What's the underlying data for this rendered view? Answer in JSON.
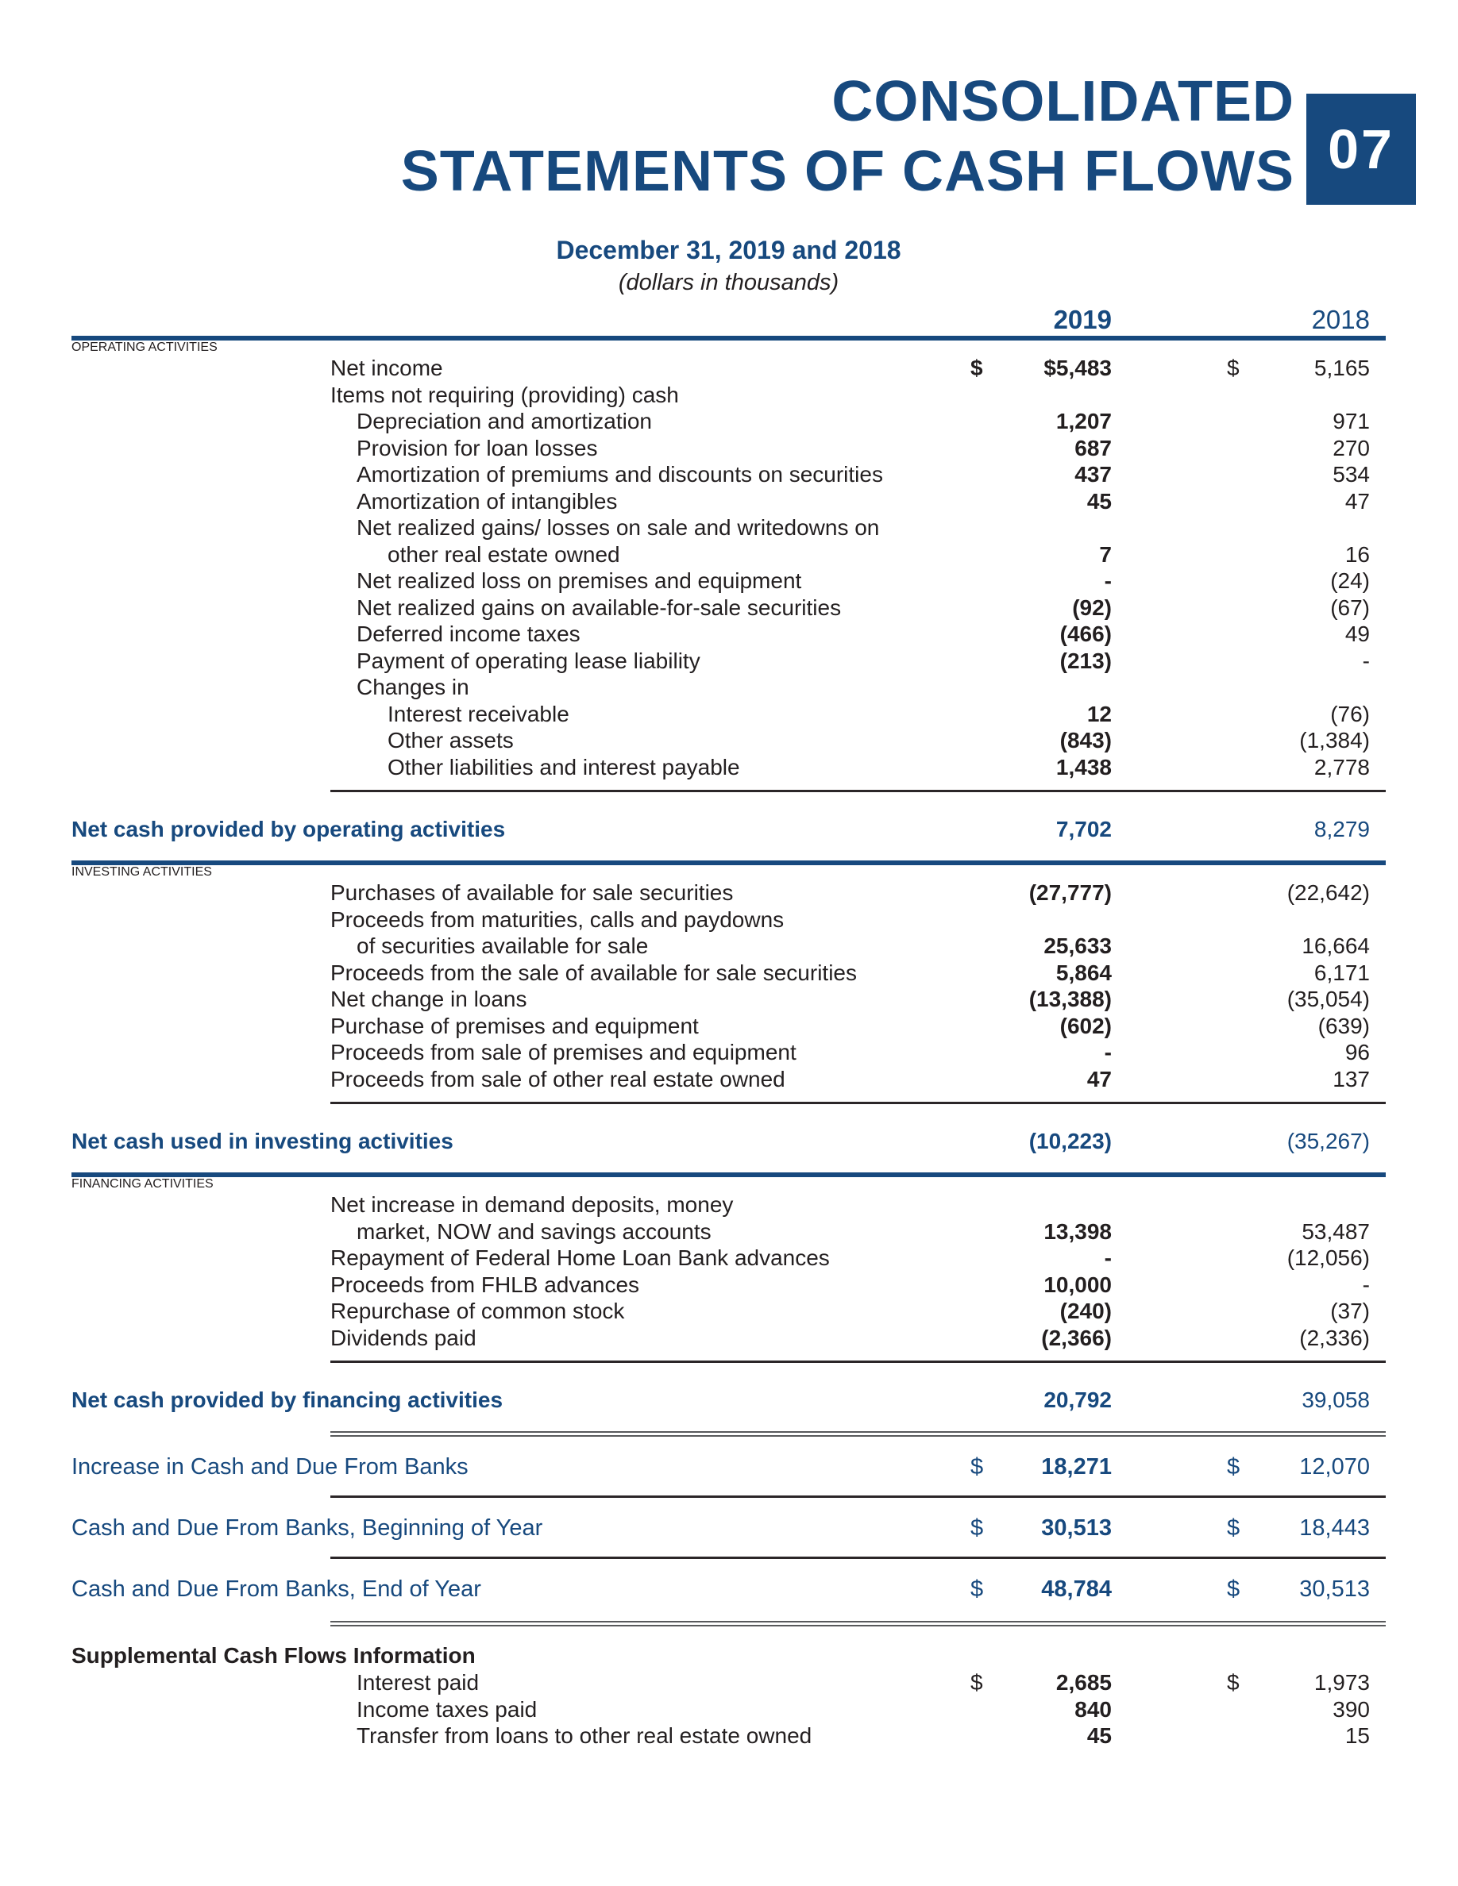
{
  "header": {
    "title_line1": "CONSOLIDATED",
    "title_line2": "STATEMENTS OF CASH FLOWS",
    "chapter_badge": "07",
    "date_line": "December 31, 2019 and 2018",
    "units_line": "(dollars in thousands)",
    "col_2019": "2019",
    "col_2018": "2018"
  },
  "colors": {
    "accent_blue": "#17497e",
    "text_black": "#231f20",
    "rule_gray": "#58595b"
  },
  "rows": [
    {
      "type": "section",
      "label": "OPERATING ACTIVITIES"
    },
    {
      "type": "item",
      "indent": 1,
      "label": "Net income",
      "d1": "$",
      "v1": "$5,483",
      "d2": "$",
      "v2": "5,165",
      "bold_d1": true
    },
    {
      "type": "item",
      "indent": 1,
      "label": "Items not requiring (providing) cash"
    },
    {
      "type": "item",
      "indent": 2,
      "label": "Depreciation and amortization",
      "v1": "1,207",
      "v2": "971"
    },
    {
      "type": "item",
      "indent": 2,
      "label": "Provision for loan losses",
      "v1": "687",
      "v2": "270"
    },
    {
      "type": "item",
      "indent": 2,
      "label": "Amortization of premiums and discounts on securities",
      "v1": "437",
      "v2": "534"
    },
    {
      "type": "item",
      "indent": 2,
      "label": "Amortization of intangibles",
      "v1": "45",
      "v2": "47"
    },
    {
      "type": "item",
      "indent": 2,
      "label": "Net realized gains/ losses on sale and writedowns on"
    },
    {
      "type": "item",
      "indent": 3,
      "label": "other real estate owned",
      "v1": "7",
      "v2": "16"
    },
    {
      "type": "item",
      "indent": 2,
      "label": "Net realized loss on premises and equipment",
      "v1": "-",
      "v2": "(24)"
    },
    {
      "type": "item",
      "indent": 2,
      "label": "Net realized gains on available-for-sale securities",
      "v1": "(92)",
      "v2": "(67)"
    },
    {
      "type": "item",
      "indent": 2,
      "label": "Deferred income taxes",
      "v1": "(466)",
      "v2": "49"
    },
    {
      "type": "item",
      "indent": 2,
      "label": "Payment of operating lease liability",
      "v1": "(213)",
      "v2": "-"
    },
    {
      "type": "item",
      "indent": 2,
      "label": "Changes in"
    },
    {
      "type": "item",
      "indent": 3,
      "label": "Interest receivable",
      "v1": "12",
      "v2": "(76)"
    },
    {
      "type": "item",
      "indent": 3,
      "label": "Other assets",
      "v1": "(843)",
      "v2": "(1,384)"
    },
    {
      "type": "item",
      "indent": 3,
      "label": "Other liabilities and interest payable",
      "v1": "1,438",
      "v2": "2,778"
    },
    {
      "type": "rule-thin"
    },
    {
      "type": "total",
      "label": "Net cash provided by operating activities",
      "v1": "7,702",
      "v2": "8,279"
    },
    {
      "type": "rule-blue"
    },
    {
      "type": "section",
      "label": "INVESTING ACTIVITIES"
    },
    {
      "type": "item",
      "indent": 1,
      "label": "Purchases of available for sale securities",
      "v1": "(27,777)",
      "v2": "(22,642)"
    },
    {
      "type": "item",
      "indent": 1,
      "label": "Proceeds from maturities, calls and paydowns"
    },
    {
      "type": "item",
      "indent": 2,
      "label": "of securities available for sale",
      "v1": "25,633",
      "v2": "16,664"
    },
    {
      "type": "item",
      "indent": 1,
      "label": "Proceeds from the sale of available for sale securities",
      "v1": "5,864",
      "v2": "6,171"
    },
    {
      "type": "item",
      "indent": 1,
      "label": "Net change in loans",
      "v1": "(13,388)",
      "v2": "(35,054)"
    },
    {
      "type": "item",
      "indent": 1,
      "label": "Purchase of premises and equipment",
      "v1": "(602)",
      "v2": "(639)"
    },
    {
      "type": "item",
      "indent": 1,
      "label": "Proceeds from sale of premises and equipment",
      "v1": "-",
      "v2": "96"
    },
    {
      "type": "item",
      "indent": 1,
      "label": "Proceeds from sale of other real estate owned",
      "v1": "47",
      "v2": "137"
    },
    {
      "type": "rule-thin"
    },
    {
      "type": "total",
      "label": "Net cash used in investing activities",
      "v1": "(10,223)",
      "v2": "(35,267)"
    },
    {
      "type": "rule-blue"
    },
    {
      "type": "section",
      "label": "FINANCING ACTIVITIES"
    },
    {
      "type": "item",
      "indent": 1,
      "label": "Net increase in demand deposits, money"
    },
    {
      "type": "item",
      "indent": 2,
      "label": "market, NOW and savings accounts",
      "v1": "13,398",
      "v2": "53,487"
    },
    {
      "type": "item",
      "indent": 1,
      "label": "Repayment of Federal Home Loan Bank advances",
      "v1": "-",
      "v2": "(12,056)"
    },
    {
      "type": "item",
      "indent": 1,
      "label": "Proceeds from FHLB advances",
      "v1": "10,000",
      "v2": "-"
    },
    {
      "type": "item",
      "indent": 1,
      "label": "Repurchase of common stock",
      "v1": "(240)",
      "v2": "(37)"
    },
    {
      "type": "item",
      "indent": 1,
      "label": "Dividends paid",
      "v1": "(2,366)",
      "v2": "(2,336)"
    },
    {
      "type": "rule-thin"
    },
    {
      "type": "total",
      "label": "Net cash provided by financing activities",
      "v1": "20,792",
      "v2": "39,058"
    },
    {
      "type": "rule-double"
    },
    {
      "type": "summary",
      "label": "Increase in Cash and Due From Banks",
      "d1": "$",
      "v1": "18,271",
      "d2": "$",
      "v2": "12,070"
    },
    {
      "type": "rule-sep"
    },
    {
      "type": "summary",
      "label": "Cash and Due From Banks, Beginning of Year",
      "d1": "$",
      "v1": "30,513",
      "d2": "$",
      "v2": "18,443"
    },
    {
      "type": "rule-sep"
    },
    {
      "type": "summary",
      "label": "Cash and Due From Banks, End of Year",
      "d1": "$",
      "v1": "48,784",
      "d2": "$",
      "v2": "30,513"
    },
    {
      "type": "rule-double"
    },
    {
      "type": "suphead",
      "label": "Supplemental Cash Flows Information"
    },
    {
      "type": "item",
      "indent": 2,
      "label": "Interest paid",
      "d1": "$",
      "v1": "2,685",
      "d2": "$",
      "v2": "1,973"
    },
    {
      "type": "item",
      "indent": 2,
      "label": "Income taxes paid",
      "v1": "840",
      "v2": "390"
    },
    {
      "type": "item",
      "indent": 2,
      "label": "Transfer from loans to other real estate owned",
      "v1": "45",
      "v2": "15"
    }
  ]
}
